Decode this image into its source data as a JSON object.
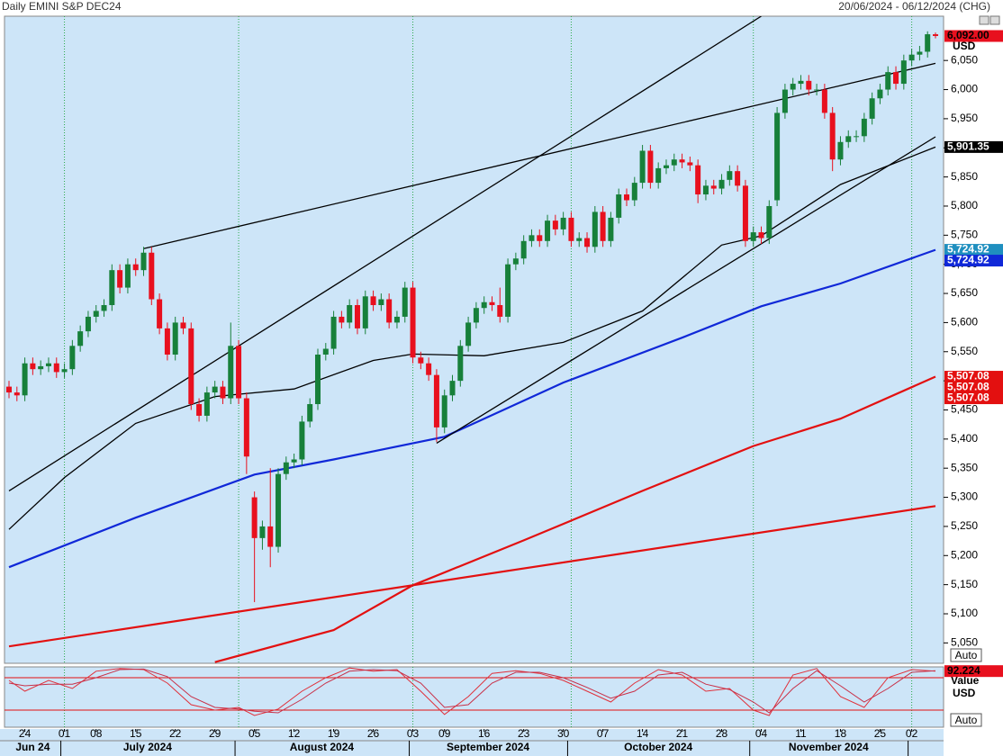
{
  "chart_data": [
    {
      "type": "candlestick",
      "title": "Daily EMINI S&P DEC24",
      "subtitle": "20/06/2024 - 06/12/2024 (CHG)",
      "x": [
        "2024-06-20",
        "2024-06-21",
        "2024-06-24",
        "2024-06-25",
        "2024-06-26",
        "2024-06-27",
        "2024-06-28",
        "2024-07-01",
        "2024-07-02",
        "2024-07-03",
        "2024-07-05",
        "2024-07-08",
        "2024-07-09",
        "2024-07-10",
        "2024-07-11",
        "2024-07-12",
        "2024-07-15",
        "2024-07-16",
        "2024-07-17",
        "2024-07-18",
        "2024-07-19",
        "2024-07-22",
        "2024-07-23",
        "2024-07-24",
        "2024-07-25",
        "2024-07-26",
        "2024-07-29",
        "2024-07-30",
        "2024-07-31",
        "2024-08-01",
        "2024-08-02",
        "2024-08-05",
        "2024-08-06",
        "2024-08-07",
        "2024-08-08",
        "2024-08-09",
        "2024-08-12",
        "2024-08-13",
        "2024-08-14",
        "2024-08-15",
        "2024-08-16",
        "2024-08-19",
        "2024-08-20",
        "2024-08-21",
        "2024-08-22",
        "2024-08-23",
        "2024-08-26",
        "2024-08-27",
        "2024-08-28",
        "2024-08-29",
        "2024-08-30",
        "2024-09-03",
        "2024-09-04",
        "2024-09-05",
        "2024-09-06",
        "2024-09-09",
        "2024-09-10",
        "2024-09-11",
        "2024-09-12",
        "2024-09-13",
        "2024-09-16",
        "2024-09-17",
        "2024-09-18",
        "2024-09-19",
        "2024-09-20",
        "2024-09-23",
        "2024-09-24",
        "2024-09-25",
        "2024-09-26",
        "2024-09-27",
        "2024-09-30",
        "2024-10-01",
        "2024-10-02",
        "2024-10-03",
        "2024-10-04",
        "2024-10-07",
        "2024-10-08",
        "2024-10-09",
        "2024-10-10",
        "2024-10-11",
        "2024-10-14",
        "2024-10-15",
        "2024-10-16",
        "2024-10-17",
        "2024-10-18",
        "2024-10-21",
        "2024-10-22",
        "2024-10-23",
        "2024-10-24",
        "2024-10-25",
        "2024-10-28",
        "2024-10-29",
        "2024-10-30",
        "2024-10-31",
        "2024-11-01",
        "2024-11-04",
        "2024-11-05",
        "2024-11-06",
        "2024-11-07",
        "2024-11-08",
        "2024-11-11",
        "2024-11-12",
        "2024-11-13",
        "2024-11-14",
        "2024-11-15",
        "2024-11-18",
        "2024-11-19",
        "2024-11-20",
        "2024-11-21",
        "2024-11-22",
        "2024-11-25",
        "2024-11-26",
        "2024-11-27",
        "2024-11-29",
        "2024-12-02",
        "2024-12-03",
        "2024-12-04",
        "2024-12-05"
      ],
      "open": [
        5490,
        5480,
        5475,
        5530,
        5520,
        5525,
        5530,
        5515,
        5520,
        5560,
        5585,
        5610,
        5620,
        5630,
        5690,
        5660,
        5700,
        5690,
        5720,
        5640,
        5590,
        5545,
        5600,
        5590,
        5460,
        5440,
        5480,
        5490,
        5470,
        5560,
        5470,
        5300,
        5230,
        5250,
        5215,
        5340,
        5360,
        5365,
        5430,
        5460,
        5545,
        5555,
        5610,
        5600,
        5630,
        5590,
        5645,
        5630,
        5640,
        5600,
        5610,
        5660,
        5540,
        5530,
        5510,
        5420,
        5475,
        5500,
        5560,
        5600,
        5625,
        5635,
        5630,
        5610,
        5700,
        5710,
        5740,
        5750,
        5740,
        5775,
        5760,
        5780,
        5740,
        5745,
        5730,
        5790,
        5740,
        5780,
        5820,
        5810,
        5840,
        5895,
        5840,
        5865,
        5870,
        5880,
        5875,
        5870,
        5820,
        5835,
        5830,
        5845,
        5860,
        5835,
        5740,
        5755,
        5745,
        5810,
        5960,
        6000,
        6010,
        6015,
        6000,
        6000,
        5960,
        5880,
        5910,
        5920,
        5920,
        5950,
        5985,
        6000,
        6030,
        6010,
        6050,
        6060,
        6065,
        6095
      ],
      "high": [
        5500,
        5490,
        5540,
        5540,
        5535,
        5540,
        5540,
        5530,
        5570,
        5595,
        5620,
        5630,
        5640,
        5700,
        5700,
        5710,
        5710,
        5730,
        5730,
        5650,
        5600,
        5610,
        5610,
        5600,
        5470,
        5490,
        5500,
        5500,
        5600,
        5570,
        5480,
        5310,
        5260,
        5350,
        5350,
        5370,
        5375,
        5440,
        5470,
        5555,
        5565,
        5620,
        5620,
        5640,
        5640,
        5655,
        5655,
        5650,
        5650,
        5620,
        5670,
        5670,
        5550,
        5540,
        5520,
        5485,
        5510,
        5570,
        5610,
        5635,
        5645,
        5645,
        5660,
        5710,
        5720,
        5750,
        5760,
        5760,
        5785,
        5785,
        5790,
        5790,
        5755,
        5755,
        5800,
        5800,
        5790,
        5830,
        5830,
        5850,
        5905,
        5905,
        5875,
        5880,
        5890,
        5890,
        5885,
        5880,
        5845,
        5845,
        5855,
        5870,
        5870,
        5845,
        5765,
        5765,
        5810,
        5970,
        6010,
        6020,
        6025,
        6025,
        6010,
        6010,
        5970,
        5920,
        5930,
        5930,
        5960,
        5995,
        6010,
        6040,
        6040,
        6060,
        6070,
        6075,
        6100,
        6098
      ],
      "low": [
        5470,
        5465,
        5465,
        5510,
        5510,
        5515,
        5505,
        5505,
        5510,
        5550,
        5575,
        5600,
        5610,
        5620,
        5650,
        5650,
        5680,
        5680,
        5630,
        5580,
        5535,
        5535,
        5580,
        5450,
        5430,
        5430,
        5470,
        5460,
        5460,
        5460,
        5340,
        5120,
        5210,
        5180,
        5205,
        5330,
        5350,
        5355,
        5420,
        5450,
        5535,
        5545,
        5590,
        5590,
        5580,
        5580,
        5620,
        5620,
        5590,
        5590,
        5600,
        5530,
        5520,
        5500,
        5395,
        5410,
        5465,
        5490,
        5550,
        5590,
        5615,
        5620,
        5600,
        5600,
        5690,
        5700,
        5730,
        5730,
        5730,
        5750,
        5750,
        5730,
        5730,
        5720,
        5720,
        5730,
        5730,
        5770,
        5800,
        5800,
        5830,
        5830,
        5830,
        5855,
        5860,
        5865,
        5860,
        5805,
        5810,
        5820,
        5820,
        5835,
        5825,
        5730,
        5730,
        5735,
        5735,
        5800,
        5950,
        5990,
        6000,
        5990,
        5990,
        5950,
        5860,
        5870,
        5900,
        5910,
        5910,
        5940,
        5975,
        5990,
        6000,
        6000,
        6040,
        6050,
        6055,
        6088
      ],
      "close": [
        5480,
        5475,
        5530,
        5520,
        5525,
        5530,
        5515,
        5520,
        5560,
        5585,
        5610,
        5620,
        5630,
        5690,
        5660,
        5700,
        5690,
        5720,
        5640,
        5590,
        5545,
        5600,
        5590,
        5460,
        5440,
        5480,
        5490,
        5470,
        5560,
        5470,
        5370,
        5230,
        5250,
        5215,
        5340,
        5360,
        5365,
        5430,
        5460,
        5545,
        5555,
        5610,
        5600,
        5630,
        5590,
        5645,
        5630,
        5640,
        5600,
        5610,
        5660,
        5540,
        5530,
        5510,
        5420,
        5475,
        5500,
        5560,
        5600,
        5625,
        5635,
        5630,
        5610,
        5700,
        5710,
        5740,
        5750,
        5740,
        5775,
        5760,
        5780,
        5740,
        5745,
        5730,
        5790,
        5740,
        5780,
        5820,
        5810,
        5840,
        5895,
        5840,
        5865,
        5870,
        5880,
        5875,
        5870,
        5820,
        5835,
        5830,
        5845,
        5860,
        5835,
        5740,
        5755,
        5745,
        5800,
        5960,
        6000,
        6010,
        6015,
        6000,
        6000,
        5960,
        5880,
        5910,
        5920,
        5920,
        5950,
        5985,
        6000,
        6030,
        6010,
        6050,
        6060,
        6065,
        6095,
        6092
      ],
      "up_color": "#17803a",
      "down_color": "#e8101e",
      "ylim": [
        5015,
        6126
      ],
      "yticks": [
        {
          "value": 5050,
          "label": "5,050"
        },
        {
          "value": 5100,
          "label": "5,100"
        },
        {
          "value": 5150,
          "label": "5,150"
        },
        {
          "value": 5200,
          "label": "5,200"
        },
        {
          "value": 5250,
          "label": "5,250"
        },
        {
          "value": 5300,
          "label": "5,300"
        },
        {
          "value": 5350,
          "label": "5,350"
        },
        {
          "value": 5400,
          "label": "5,400"
        },
        {
          "value": 5450,
          "label": "5,450"
        },
        {
          "value": 5500,
          "label": "5,500"
        },
        {
          "value": 5550,
          "label": "5,550"
        },
        {
          "value": 5600,
          "label": "5,600"
        },
        {
          "value": 5650,
          "label": "5,650"
        },
        {
          "value": 5700,
          "label": "5,700"
        },
        {
          "value": 5750,
          "label": "5,750"
        },
        {
          "value": 5800,
          "label": "5,800"
        },
        {
          "value": 5850,
          "label": "5,850"
        },
        {
          "value": 5900,
          "label": "5,900"
        },
        {
          "value": 5950,
          "label": "5,950"
        },
        {
          "value": 6000,
          "label": "6,000"
        },
        {
          "value": 6050,
          "label": "6,050"
        }
      ],
      "xticks": [
        {
          "value": "2024-06-24",
          "label": "24"
        },
        {
          "value": "2024-07-01",
          "label": "01"
        },
        {
          "value": "2024-07-08",
          "label": "08"
        },
        {
          "value": "2024-07-15",
          "label": "15"
        },
        {
          "value": "2024-07-22",
          "label": "22"
        },
        {
          "value": "2024-07-29",
          "label": "29"
        },
        {
          "value": "2024-08-05",
          "label": "05"
        },
        {
          "value": "2024-08-12",
          "label": "12"
        },
        {
          "value": "2024-08-19",
          "label": "19"
        },
        {
          "value": "2024-08-26",
          "label": "26"
        },
        {
          "value": "2024-09-03",
          "label": "03"
        },
        {
          "value": "2024-09-09",
          "label": "09"
        },
        {
          "value": "2024-09-16",
          "label": "16"
        },
        {
          "value": "2024-09-23",
          "label": "23"
        },
        {
          "value": "2024-09-30",
          "label": "30"
        },
        {
          "value": "2024-10-07",
          "label": "07"
        },
        {
          "value": "2024-10-14",
          "label": "14"
        },
        {
          "value": "2024-10-21",
          "label": "21"
        },
        {
          "value": "2024-10-28",
          "label": "28"
        },
        {
          "value": "2024-11-04",
          "label": "04"
        },
        {
          "value": "2024-11-11",
          "label": "11"
        },
        {
          "value": "2024-11-18",
          "label": "18"
        },
        {
          "value": "2024-11-25",
          "label": "25"
        },
        {
          "value": "2024-12-02",
          "label": "02"
        }
      ],
      "month_labels": [
        {
          "value": "2024-06",
          "label": "Jun 24"
        },
        {
          "value": "2024-07",
          "label": "July 2024"
        },
        {
          "value": "2024-08",
          "label": "August 2024"
        },
        {
          "value": "2024-09",
          "label": "September 2024"
        },
        {
          "value": "2024-10",
          "label": "October 2024"
        },
        {
          "value": "2024-11",
          "label": "November 2024"
        }
      ],
      "vgrid": "month-start",
      "grid_color": "#2aa84a",
      "currency": "USD",
      "scale_mode": "Auto",
      "overlays": [
        {
          "color": "#000000",
          "x": [
            "2024-06-20",
            "2024-07-01",
            "2024-07-15",
            "2024-07-29",
            "2024-08-12",
            "2024-08-26",
            "2024-09-03",
            "2024-09-16",
            "2024-09-30",
            "2024-10-14",
            "2024-10-28",
            "2024-11-04",
            "2024-11-18",
            "2024-12-05"
          ],
          "values": [
            5245,
            5334,
            5427,
            5473,
            5486,
            5535,
            5546,
            5543,
            5566,
            5620,
            5733,
            5749,
            5837,
            5901.35
          ]
        },
        {
          "color": "#1028d8",
          "x": [
            "2024-06-20",
            "2024-07-15",
            "2024-08-05",
            "2024-08-19",
            "2024-09-09",
            "2024-09-30",
            "2024-10-21",
            "2024-11-04",
            "2024-11-18",
            "2024-12-05"
          ],
          "values": [
            5180,
            5265,
            5339,
            5365,
            5404,
            5497,
            5574,
            5628,
            5667,
            5724.92
          ]
        },
        {
          "color": "#e31010",
          "x": [
            "2024-07-29",
            "2024-08-19",
            "2024-09-03",
            "2024-09-23",
            "2024-10-14",
            "2024-11-01",
            "2024-11-18",
            "2024-12-05"
          ],
          "values": [
            5017,
            5072,
            5149,
            5226,
            5311,
            5388,
            5435,
            5507.08
          ]
        },
        {
          "color": "#e31010",
          "x": [
            "2024-06-20",
            "2024-12-05"
          ],
          "values": [
            5044,
            5285
          ]
        },
        {
          "color": "#000000",
          "x": [
            "2024-07-16",
            "2024-12-05"
          ],
          "values": [
            5727,
            6045
          ]
        },
        {
          "color": "#000000",
          "x": [
            "2024-06-20",
            "2024-11-04"
          ],
          "values": [
            5311,
            6126
          ]
        },
        {
          "color": "#000000",
          "x": [
            "2024-09-06",
            "2024-12-05"
          ],
          "values": [
            5393,
            5919
          ]
        }
      ],
      "price_markers": [
        {
          "value": 6092,
          "label": "6,092.00",
          "color": "#e8101e"
        },
        {
          "value": 5901.35,
          "label": "5,901.35",
          "color": "#000000"
        },
        {
          "value": 5724.92,
          "label": "5,724.92",
          "color": "#1f8fbf"
        },
        {
          "value": 5724.92,
          "label": "5,724.92",
          "color": "#1028d8"
        },
        {
          "value": 5507.08,
          "label": "5,507.08",
          "color": "#e31010"
        },
        {
          "value": 5507.08,
          "label": "5,507.08",
          "color": "#e31010"
        },
        {
          "value": 5507.08,
          "label": "5,507.08",
          "color": "#e31010"
        }
      ]
    },
    {
      "type": "line",
      "x": [
        "2024-06-20",
        "2024-06-24",
        "2024-06-27",
        "2024-07-02",
        "2024-07-08",
        "2024-07-11",
        "2024-07-16",
        "2024-07-19",
        "2024-07-24",
        "2024-07-29",
        "2024-08-01",
        "2024-08-05",
        "2024-08-08",
        "2024-08-13",
        "2024-08-16",
        "2024-08-21",
        "2024-08-26",
        "2024-08-29",
        "2024-09-04",
        "2024-09-09",
        "2024-09-12",
        "2024-09-17",
        "2024-09-20",
        "2024-09-25",
        "2024-09-30",
        "2024-10-03",
        "2024-10-08",
        "2024-10-11",
        "2024-10-16",
        "2024-10-21",
        "2024-10-24",
        "2024-10-29",
        "2024-11-01",
        "2024-11-05",
        "2024-11-08",
        "2024-11-13",
        "2024-11-18",
        "2024-11-21",
        "2024-11-26",
        "2024-12-02",
        "2024-12-05"
      ],
      "series": [
        {
          "color": "#e0303a",
          "values": [
            75,
            55,
            75,
            60,
            92,
            97,
            95,
            70,
            30,
            20,
            25,
            10,
            22,
            55,
            80,
            98,
            92,
            95,
            55,
            12,
            45,
            88,
            93,
            88,
            75,
            55,
            35,
            70,
            95,
            85,
            55,
            60,
            20,
            10,
            85,
            97,
            45,
            25,
            80,
            95,
            92.224
          ]
        },
        {
          "color": "#c83048",
          "values": [
            70,
            65,
            68,
            68,
            80,
            95,
            96,
            82,
            45,
            25,
            22,
            18,
            15,
            40,
            70,
            92,
            95,
            93,
            70,
            25,
            30,
            70,
            90,
            90,
            80,
            62,
            42,
            55,
            85,
            90,
            68,
            58,
            35,
            15,
            60,
            93,
            65,
            35,
            60,
            90,
            93
          ]
        }
      ],
      "ylim": [
        0,
        100
      ],
      "levels": [
        20,
        80
      ],
      "level_color": "#e31010",
      "marker": {
        "value": 92.224,
        "label": "92.224",
        "color": "#e8101e"
      },
      "value_caption": "Value",
      "currency": "USD",
      "scale_mode": "Auto"
    }
  ]
}
